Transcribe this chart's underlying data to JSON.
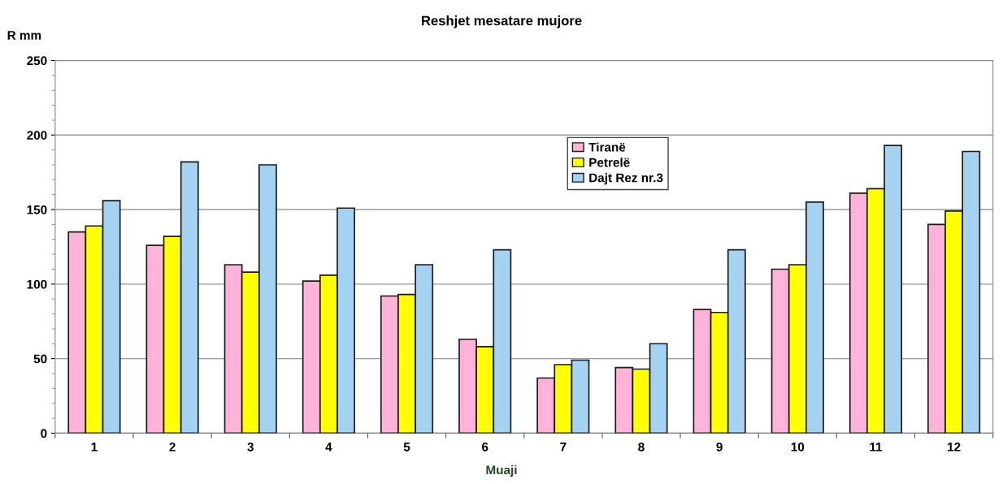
{
  "chart_data": {
    "type": "bar",
    "title": "Reshjet mesatare mujore",
    "xlabel": "Muaji",
    "ylabel": "R mm",
    "categories": [
      "1",
      "2",
      "3",
      "4",
      "5",
      "6",
      "7",
      "8",
      "9",
      "10",
      "11",
      "12"
    ],
    "series": [
      {
        "name": "Tiranë",
        "color": "#ffb3d9",
        "values": [
          135,
          126,
          113,
          102,
          92,
          63,
          37,
          44,
          83,
          110,
          161,
          140
        ]
      },
      {
        "name": "Petrelë",
        "color": "#ffff00",
        "values": [
          139,
          132,
          108,
          106,
          93,
          58,
          46,
          43,
          81,
          113,
          164,
          149
        ]
      },
      {
        "name": "Dajt Rez nr.3",
        "color": "#a6d2f2",
        "values": [
          156,
          182,
          180,
          151,
          113,
          123,
          49,
          60,
          123,
          155,
          193,
          189
        ]
      }
    ],
    "ylim": [
      0,
      250
    ],
    "yticks": [
      0,
      50,
      100,
      150,
      200,
      250
    ],
    "grid": "y",
    "legend": "top"
  }
}
